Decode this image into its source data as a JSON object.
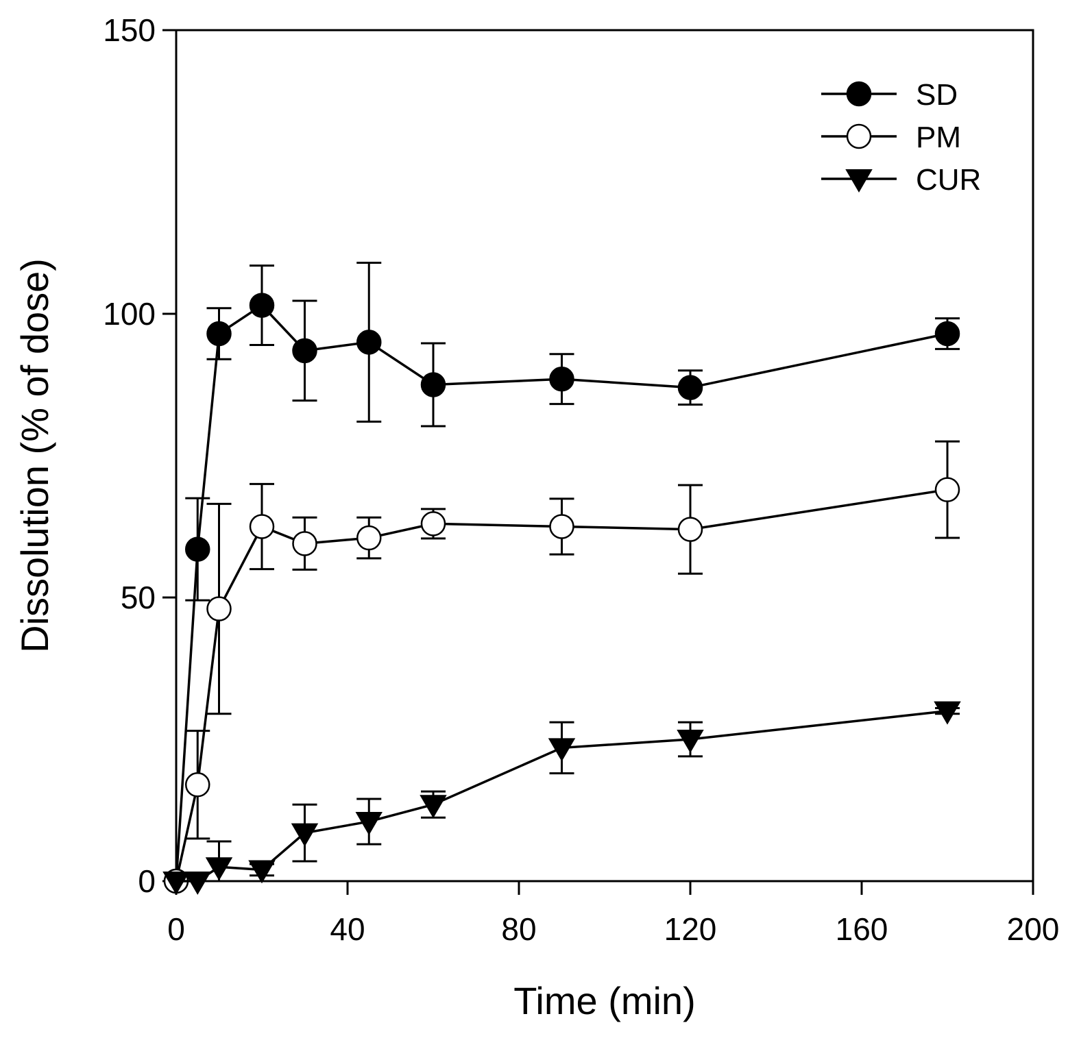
{
  "chart_data": {
    "type": "line",
    "title": "",
    "xlabel": "Time (min)",
    "ylabel": "Dissolution (% of dose)",
    "xlim": [
      0,
      200
    ],
    "ylim": [
      0,
      150
    ],
    "xticks": [
      0,
      40,
      80,
      120,
      160,
      200
    ],
    "yticks": [
      0,
      50,
      100,
      150
    ],
    "grid": false,
    "legend_position": "top-right",
    "series": [
      {
        "name": "SD",
        "marker": "filled-circle",
        "x": [
          0,
          5,
          10,
          20,
          30,
          45,
          60,
          90,
          120,
          180
        ],
        "y": [
          0,
          58.5,
          96.5,
          101.5,
          93.5,
          95,
          87.5,
          88.5,
          87,
          96.5
        ],
        "err": [
          0,
          9,
          4.5,
          7,
          8.8,
          14,
          7.3,
          4.4,
          3,
          2.7
        ]
      },
      {
        "name": "PM",
        "marker": "open-circle",
        "x": [
          0,
          5,
          10,
          20,
          30,
          45,
          60,
          90,
          120,
          180
        ],
        "y": [
          0,
          17,
          48,
          62.5,
          59.5,
          60.5,
          63,
          62.5,
          62,
          69
        ],
        "err": [
          0,
          9.5,
          18.5,
          7.5,
          4.6,
          3.6,
          2.6,
          4.9,
          7.8,
          8.5
        ]
      },
      {
        "name": "CUR",
        "marker": "filled-triangle-down",
        "x": [
          0,
          5,
          10,
          20,
          30,
          45,
          60,
          90,
          120,
          180
        ],
        "y": [
          0,
          0,
          2.5,
          2,
          8.5,
          10.5,
          13.5,
          23.5,
          25,
          30
        ],
        "err": [
          0,
          0,
          4.5,
          1,
          5,
          4,
          2.3,
          4.5,
          3,
          0.5
        ]
      }
    ]
  }
}
